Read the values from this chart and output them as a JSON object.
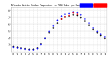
{
  "title": "Milwaukee Weather Outdoor Temperature  vs THSW Index  per Hour  (24 Hours)",
  "bg_color": "#ffffff",
  "grid_color": "#cccccc",
  "legend_blue": "#0000ff",
  "legend_red": "#ff0000",
  "xlim": [
    -0.5,
    23.5
  ],
  "ylim": [
    20,
    85
  ],
  "ytick_vals": [
    30,
    40,
    50,
    60,
    70,
    80
  ],
  "ytick_labels": [
    "3",
    "4",
    "5",
    "6",
    "7",
    "8"
  ],
  "xticks": [
    0,
    1,
    2,
    3,
    4,
    5,
    6,
    7,
    8,
    9,
    10,
    11,
    12,
    13,
    14,
    15,
    16,
    17,
    18,
    19,
    20,
    21,
    22,
    23
  ],
  "xtick_labels": [
    "0",
    "1",
    "2",
    "3",
    "4",
    "5",
    "6",
    "7",
    "8",
    "9",
    "0",
    "1",
    "2",
    "3",
    "4",
    "5",
    "6",
    "7",
    "8",
    "9",
    "0",
    "1",
    "2",
    "3"
  ],
  "hours": [
    0,
    1,
    2,
    3,
    4,
    5,
    6,
    7,
    8,
    9,
    10,
    11,
    12,
    13,
    14,
    15,
    16,
    17,
    18,
    19,
    20,
    21,
    22,
    23
  ],
  "temp_black": [
    28,
    27,
    26,
    25,
    24,
    24,
    26,
    32,
    40,
    48,
    55,
    62,
    68,
    71,
    72,
    74,
    73,
    70,
    65,
    59,
    53,
    48,
    44,
    40
  ],
  "temp_blue": [
    27,
    26,
    25,
    24,
    23,
    23,
    25,
    31,
    40,
    50,
    58,
    66,
    72,
    75,
    76,
    78,
    77,
    74,
    68,
    62,
    55,
    50,
    46,
    42
  ],
  "temp_red": [
    null,
    null,
    null,
    null,
    null,
    null,
    null,
    null,
    null,
    null,
    null,
    null,
    68,
    71,
    73,
    77,
    75,
    null,
    null,
    null,
    null,
    null,
    null,
    null
  ],
  "dot_size": 2.5
}
